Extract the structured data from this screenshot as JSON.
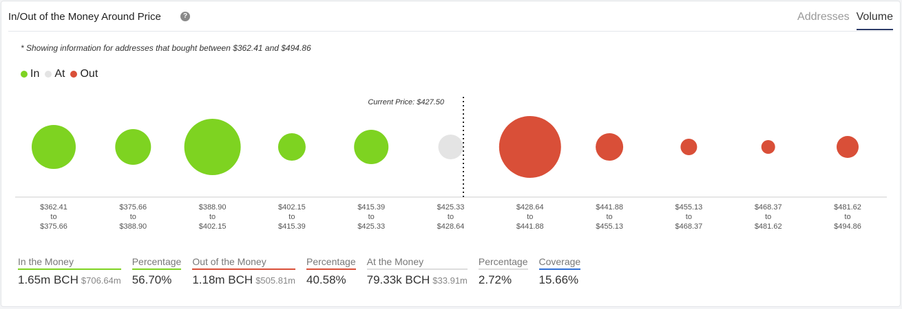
{
  "header": {
    "title": "In/Out of the Money Around Price",
    "help_icon": "question-circle-icon",
    "tabs": [
      {
        "label": "Addresses",
        "active": false
      },
      {
        "label": "Volume",
        "active": true
      }
    ]
  },
  "note": "* Showing information for addresses that bought between $362.41 and $494.86",
  "colors": {
    "in": "#7ed321",
    "at": "#e4e4e4",
    "out": "#d94f38",
    "coverage": "#2f6fd6"
  },
  "legend": [
    {
      "label": "In",
      "key": "in"
    },
    {
      "label": "At",
      "key": "at"
    },
    {
      "label": "Out",
      "key": "out"
    }
  ],
  "chart_data": {
    "type": "bubble",
    "current_price_label": "Current Price: $427.50",
    "current_price": 427.5,
    "buckets": [
      {
        "from": "$362.41",
        "to": "$375.66",
        "status": "in",
        "relative_volume": 1024
      },
      {
        "from": "$375.66",
        "to": "$388.90",
        "status": "in",
        "relative_volume": 676
      },
      {
        "from": "$388.90",
        "to": "$402.15",
        "status": "in",
        "relative_volume": 1681
      },
      {
        "from": "$402.15",
        "to": "$415.39",
        "status": "in",
        "relative_volume": 400
      },
      {
        "from": "$415.39",
        "to": "$425.33",
        "status": "in",
        "relative_volume": 625
      },
      {
        "from": "$425.33",
        "to": "$428.64",
        "status": "at",
        "relative_volume": 324
      },
      {
        "from": "$428.64",
        "to": "$441.88",
        "status": "out",
        "relative_volume": 2025
      },
      {
        "from": "$441.88",
        "to": "$455.13",
        "status": "out",
        "relative_volume": 400
      },
      {
        "from": "$455.13",
        "to": "$468.37",
        "status": "out",
        "relative_volume": 144
      },
      {
        "from": "$468.37",
        "to": "$481.62",
        "status": "out",
        "relative_volume": 100
      },
      {
        "from": "$481.62",
        "to": "$494.86",
        "status": "out",
        "relative_volume": 256
      }
    ],
    "to_word": "to"
  },
  "stats": [
    {
      "label": "In the Money",
      "value": "1.65m BCH",
      "sub": "$706.64m",
      "color": "#7ed321"
    },
    {
      "label": "Percentage",
      "value": "56.70%",
      "sub": "",
      "color": "#7ed321"
    },
    {
      "label": "Out of the Money",
      "value": "1.18m BCH",
      "sub": "$505.81m",
      "color": "#d94f38"
    },
    {
      "label": "Percentage",
      "value": "40.58%",
      "sub": "",
      "color": "#d94f38"
    },
    {
      "label": "At the Money",
      "value": "79.33k BCH",
      "sub": "$33.91m",
      "color": "#dddddd"
    },
    {
      "label": "Percentage",
      "value": "2.72%",
      "sub": "",
      "color": "#dddddd"
    },
    {
      "label": "Coverage",
      "value": "15.66%",
      "sub": "",
      "color": "#2f6fd6"
    }
  ]
}
